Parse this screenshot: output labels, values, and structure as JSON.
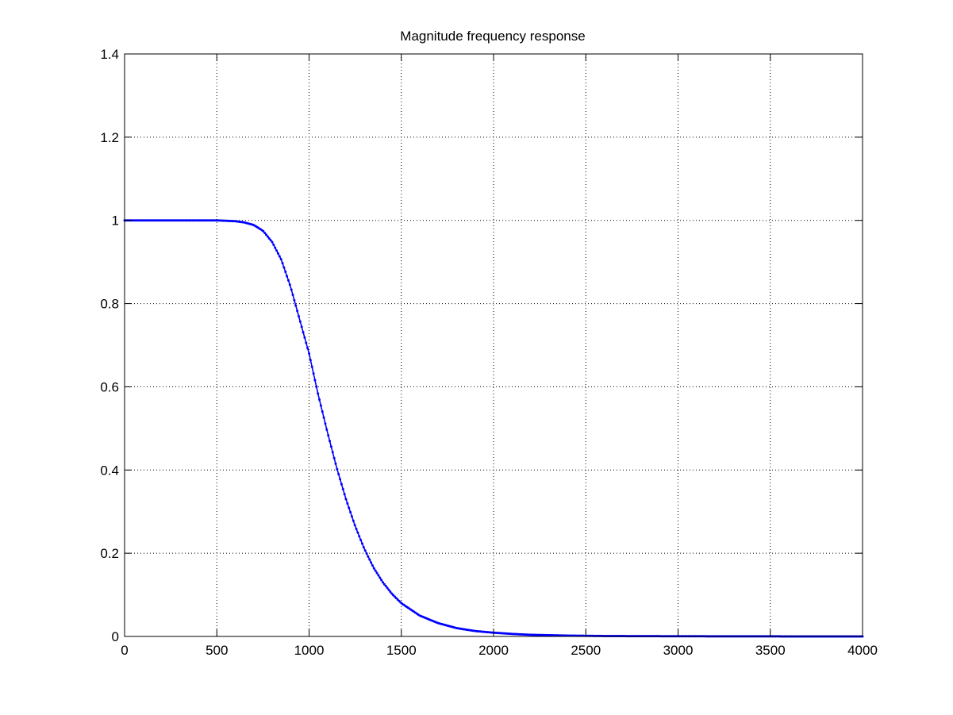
{
  "chart_data": {
    "type": "line",
    "title": "Magnitude frequency response",
    "xlabel": "",
    "ylabel": "",
    "xlim": [
      0,
      4000
    ],
    "ylim": [
      0,
      1.4
    ],
    "xticks": [
      0,
      500,
      1000,
      1500,
      2000,
      2500,
      3000,
      3500,
      4000
    ],
    "yticks": [
      0,
      0.2,
      0.4,
      0.6,
      0.8,
      1,
      1.2,
      1.4
    ],
    "xtick_labels": [
      "0",
      "500",
      "1000",
      "1500",
      "2000",
      "2500",
      "3000",
      "3500",
      "4000"
    ],
    "ytick_labels": [
      "0",
      "0.2",
      "0.4",
      "0.6",
      "0.8",
      "1",
      "1.2",
      "1.4"
    ],
    "grid": true,
    "line_color": "#0000ff",
    "marker": "point",
    "series": [
      {
        "x": [
          0,
          100,
          200,
          300,
          400,
          500,
          550,
          600,
          650,
          700,
          750,
          800,
          850,
          900,
          950,
          1000,
          1050,
          1100,
          1150,
          1200,
          1250,
          1300,
          1350,
          1400,
          1450,
          1500,
          1600,
          1700,
          1800,
          1900,
          2000,
          2100,
          2200,
          2300,
          2400,
          2500,
          2600,
          2800,
          3000,
          3200,
          3400,
          3600,
          3800,
          4000
        ],
        "values": [
          1,
          1,
          1,
          1,
          1,
          1,
          0.999,
          0.998,
          0.995,
          0.989,
          0.975,
          0.948,
          0.905,
          0.84,
          0.76,
          0.68,
          0.58,
          0.49,
          0.405,
          0.33,
          0.265,
          0.21,
          0.165,
          0.13,
          0.102,
          0.08,
          0.05,
          0.032,
          0.02,
          0.013,
          0.009,
          0.006,
          0.004,
          0.003,
          0.002,
          0.0015,
          0.001,
          0.0007,
          0.0005,
          0.0003,
          0.0002,
          0.0001,
          0.0001,
          0.0001
        ]
      }
    ]
  }
}
